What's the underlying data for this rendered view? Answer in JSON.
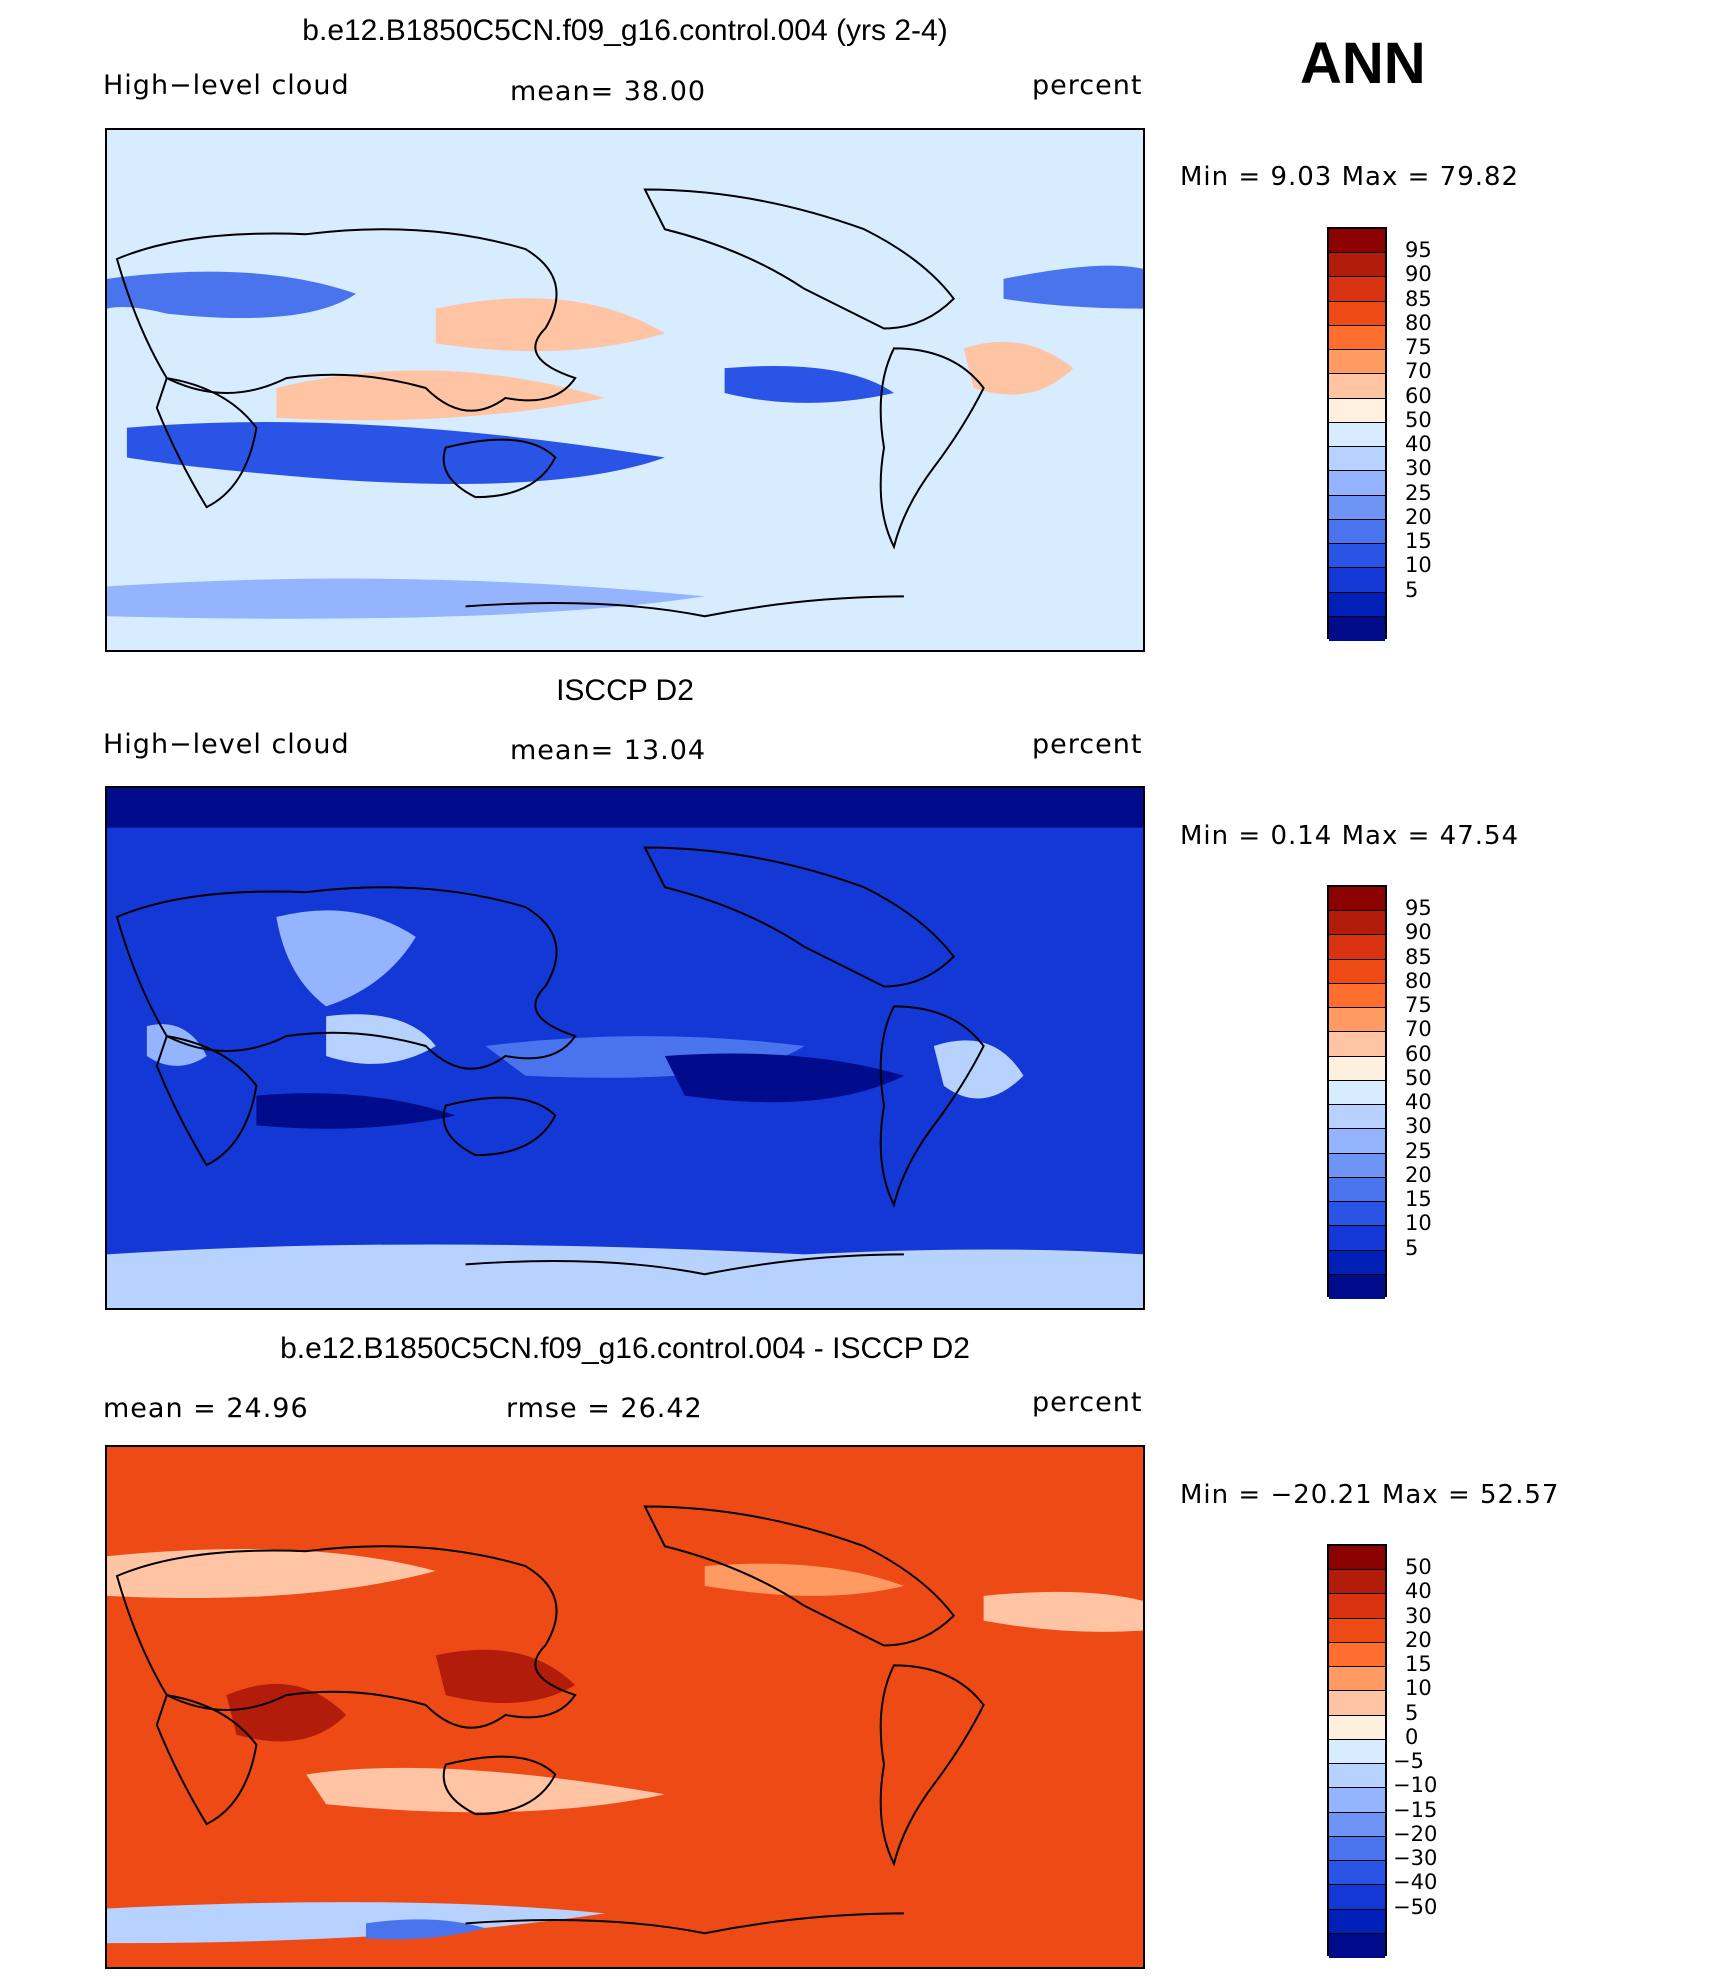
{
  "corner_label": "ANN",
  "palette_abs": [
    "#8b0000",
    "#b21c0a",
    "#d83210",
    "#ee4a16",
    "#ff6e2e",
    "#ff9a62",
    "#ffc4a4",
    "#fff0e0",
    "#d8ecff",
    "#b8d2ff",
    "#94b4ff",
    "#6e94f5",
    "#4a74ee",
    "#2a54e6",
    "#1438d6",
    "#0020b8",
    "#000c8c"
  ],
  "palette_diff": [
    "#8b0000",
    "#b21c0a",
    "#d83210",
    "#ee4a16",
    "#ff6e2e",
    "#ff9a62",
    "#ffc4a4",
    "#fff0e0",
    "#d8ecff",
    "#b8d2ff",
    "#94b4ff",
    "#6e94f5",
    "#4a74ee",
    "#2a54e6",
    "#1438d6",
    "#0020b8",
    "#000c8c"
  ],
  "chart_data": [
    {
      "type": "heatmap",
      "title": "b.e12.B1850C5CN.f09_g16.control.004 (yrs 2-4)",
      "variable": "High−level cloud",
      "stat_text": "mean=   38.00",
      "mean": 38.0,
      "units": "percent",
      "minmax_text": "Min =    9.03  Max =    79.82",
      "min": 9.03,
      "max": 79.82,
      "colorbar_levels": [
        "95",
        "90",
        "85",
        "80",
        "75",
        "70",
        "60",
        "50",
        "40",
        "30",
        "25",
        "20",
        "15",
        "10",
        "5"
      ],
      "background_level": "40"
    },
    {
      "type": "heatmap",
      "title": "ISCCP D2",
      "variable": "High−level cloud",
      "stat_text": "mean=   13.04",
      "mean": 13.04,
      "units": "percent",
      "minmax_text": "Min =    0.14  Max =    47.54",
      "min": 0.14,
      "max": 47.54,
      "colorbar_levels": [
        "95",
        "90",
        "85",
        "80",
        "75",
        "70",
        "60",
        "50",
        "40",
        "30",
        "25",
        "20",
        "15",
        "10",
        "5"
      ],
      "background_level": "10"
    },
    {
      "type": "heatmap",
      "title": "b.e12.B1850C5CN.f09_g16.control.004 - ISCCP D2",
      "stat_text": "mean =    24.96",
      "mean": 24.96,
      "rmse_text": "rmse =    26.42",
      "rmse": 26.42,
      "units": "percent",
      "minmax_text": "Min = −20.21  Max =    52.57",
      "min": -20.21,
      "max": 52.57,
      "colorbar_levels": [
        "50",
        "40",
        "30",
        "20",
        "15",
        "10",
        "5",
        "0",
        "−5",
        "−10",
        "−15",
        "−20",
        "−30",
        "−40",
        "−50"
      ],
      "background_level": "30"
    }
  ]
}
